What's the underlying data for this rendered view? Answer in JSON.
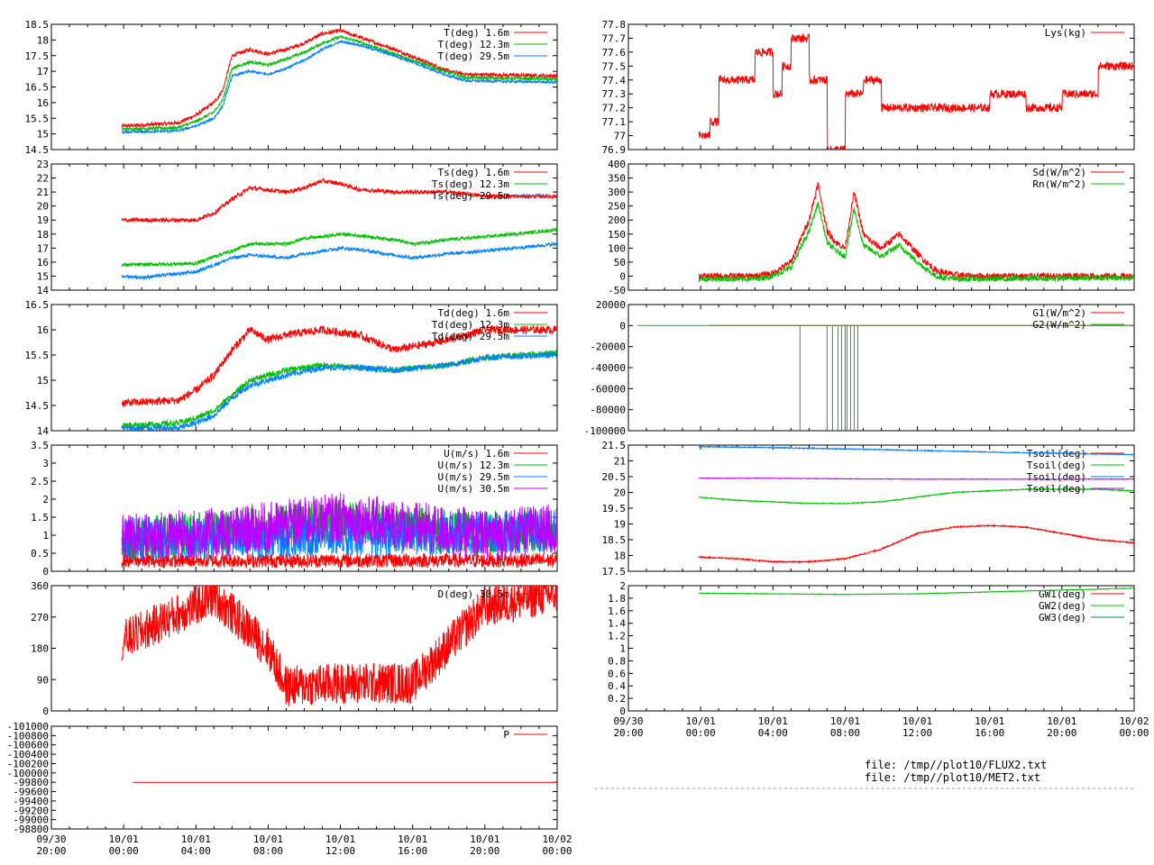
{
  "colors": {
    "red": "#ff0000",
    "green": "#00c000",
    "blue": "#0080ff",
    "magenta": "#c000ff",
    "brown": "#a05000",
    "teal": "#008080"
  },
  "time_axis": {
    "tick_labels": [
      [
        "09/30",
        "20:00"
      ],
      [
        "10/01",
        "00:00"
      ],
      [
        "10/01",
        "04:00"
      ],
      [
        "10/01",
        "08:00"
      ],
      [
        "10/01",
        "12:00"
      ],
      [
        "10/01",
        "16:00"
      ],
      [
        "10/01",
        "20:00"
      ],
      [
        "10/02",
        "00:00"
      ]
    ]
  },
  "files": {
    "line1": "file: /tmp//plot10/FLUX2.txt",
    "line2": "file: /tmp//plot10/MET2.txt"
  },
  "chart_data": [
    {
      "id": "temp",
      "type": "line",
      "x_range_hours": [
        0,
        28
      ],
      "ylim": [
        14.5,
        18.5
      ],
      "yticks": [
        "18.5",
        "18",
        "17.5",
        "17",
        "16.5",
        "16",
        "15.5",
        "15",
        "14.5"
      ],
      "series": [
        {
          "name": "T(deg)  1.6m",
          "color": "#ff0000",
          "noise": 0.06,
          "x": [
            3.9,
            7,
            8,
            9,
            9.5,
            10,
            11,
            12,
            13,
            14,
            15,
            16,
            17,
            19,
            22,
            23,
            28
          ],
          "y": [
            15.25,
            15.35,
            15.6,
            16,
            16.4,
            17.5,
            17.7,
            17.55,
            17.7,
            17.9,
            18.2,
            18.3,
            18.1,
            17.7,
            17.0,
            16.9,
            16.85
          ]
        },
        {
          "name": "T(deg) 12.3m",
          "color": "#00c000",
          "noise": 0.05,
          "x": [
            3.9,
            7,
            8,
            9,
            9.5,
            10,
            11,
            12,
            13,
            14,
            15,
            16,
            17,
            19,
            22,
            23,
            28
          ],
          "y": [
            15.15,
            15.2,
            15.4,
            15.7,
            16.1,
            17.1,
            17.3,
            17.2,
            17.4,
            17.6,
            17.9,
            18.1,
            17.95,
            17.55,
            16.95,
            16.8,
            16.75
          ]
        },
        {
          "name": "T(deg) 29.5m",
          "color": "#0080ff",
          "noise": 0.04,
          "x": [
            3.9,
            7,
            8,
            9,
            9.5,
            10,
            11,
            12,
            13,
            14,
            15,
            16,
            17,
            19,
            22,
            23,
            28
          ],
          "y": [
            15.05,
            15.1,
            15.25,
            15.5,
            15.9,
            16.85,
            17.0,
            16.9,
            17.1,
            17.35,
            17.7,
            17.95,
            17.85,
            17.5,
            16.85,
            16.7,
            16.65
          ]
        }
      ]
    },
    {
      "id": "sonic_temp",
      "type": "line",
      "x_range_hours": [
        0,
        28
      ],
      "ylim": [
        14,
        23
      ],
      "yticks": [
        "23",
        "22",
        "21",
        "20",
        "19",
        "18",
        "17",
        "16",
        "15",
        "14"
      ],
      "series": [
        {
          "name": "Ts(deg)  1.6m",
          "color": "#ff0000",
          "noise": 0.15,
          "x": [
            3.9,
            8,
            9,
            10,
            11,
            13,
            14,
            15,
            16,
            17,
            19,
            22,
            24,
            28
          ],
          "y": [
            19.0,
            19.0,
            19.5,
            20.5,
            21.3,
            21.0,
            21.3,
            21.8,
            21.6,
            21.2,
            21.0,
            21.0,
            20.7,
            20.7
          ]
        },
        {
          "name": "Ts(deg) 12.3m",
          "color": "#00c000",
          "noise": 0.12,
          "x": [
            3.9,
            8,
            9,
            10,
            11,
            13,
            14,
            15,
            16,
            17,
            19,
            20,
            22,
            24,
            28
          ],
          "y": [
            15.8,
            15.9,
            16.4,
            16.8,
            17.3,
            17.3,
            17.7,
            17.8,
            18.0,
            17.9,
            17.6,
            17.3,
            17.6,
            17.8,
            18.3
          ]
        },
        {
          "name": "Ts(deg) 29.5m",
          "color": "#0080ff",
          "noise": 0.12,
          "x": [
            3.9,
            5,
            8,
            9,
            10,
            11,
            13,
            14,
            15,
            16,
            17,
            19,
            20,
            22,
            24,
            28
          ],
          "y": [
            15.0,
            14.9,
            15.3,
            15.8,
            16.3,
            16.5,
            16.3,
            16.6,
            16.8,
            17.0,
            16.9,
            16.5,
            16.3,
            16.6,
            16.8,
            17.3
          ]
        }
      ]
    },
    {
      "id": "dewpoint",
      "type": "line",
      "x_range_hours": [
        0,
        28
      ],
      "ylim": [
        14,
        16.5
      ],
      "yticks": [
        "16.5",
        "16",
        "15.5",
        "15",
        "14.5",
        "14"
      ],
      "series": [
        {
          "name": "Td(deg)  1.6m",
          "color": "#ff0000",
          "noise": 0.08,
          "x": [
            3.9,
            7,
            8,
            9,
            10,
            11,
            12,
            13,
            15,
            17,
            19,
            22,
            24,
            28
          ],
          "y": [
            14.55,
            14.6,
            14.8,
            15.1,
            15.6,
            16.0,
            15.8,
            15.9,
            16.0,
            15.9,
            15.6,
            15.8,
            16.0,
            16.0
          ]
        },
        {
          "name": "Td(deg) 12.3m",
          "color": "#00c000",
          "noise": 0.06,
          "x": [
            3.9,
            7,
            8,
            9,
            10,
            11,
            12,
            13,
            15,
            17,
            19,
            22,
            24,
            28
          ],
          "y": [
            14.1,
            14.15,
            14.25,
            14.4,
            14.7,
            15.0,
            15.1,
            15.2,
            15.3,
            15.25,
            15.2,
            15.3,
            15.45,
            15.55
          ]
        },
        {
          "name": "Td(deg) 29.5m",
          "color": "#0080ff",
          "noise": 0.06,
          "x": [
            3.9,
            7,
            8,
            9,
            10,
            11,
            12,
            13,
            15,
            17,
            19,
            22,
            24,
            28
          ],
          "y": [
            14.05,
            14.05,
            14.15,
            14.3,
            14.65,
            14.9,
            15.0,
            15.1,
            15.25,
            15.25,
            15.2,
            15.3,
            15.45,
            15.5
          ]
        }
      ]
    },
    {
      "id": "wind_speed",
      "type": "line",
      "x_range_hours": [
        0,
        28
      ],
      "ylim": [
        0,
        3.5
      ],
      "yticks": [
        "3.5",
        "3",
        "2.5",
        "2",
        "1.5",
        "1",
        "0.5",
        "0"
      ],
      "series": [
        {
          "name": "U(m/s)  1.6m",
          "color": "#ff0000",
          "noise": 0.2,
          "x": [
            3.9,
            28
          ],
          "y": [
            0.3,
            0.3
          ]
        },
        {
          "name": "U(m/s) 12.3m",
          "color": "#00c000",
          "noise": 0.6,
          "x": [
            3.9,
            10,
            16,
            24,
            28
          ],
          "y": [
            0.9,
            1.1,
            1.4,
            1.0,
            1.2
          ]
        },
        {
          "name": "U(m/s) 29.5m",
          "color": "#0080ff",
          "noise": 0.6,
          "x": [
            3.9,
            28
          ],
          "y": [
            0.9,
            1.1
          ]
        },
        {
          "name": "U(m/s) 30.5m",
          "color": "#c000ff",
          "noise": 0.7,
          "x": [
            3.9,
            10,
            16,
            24,
            28
          ],
          "y": [
            0.9,
            1.1,
            1.5,
            1.0,
            1.2
          ]
        }
      ]
    },
    {
      "id": "wind_dir",
      "type": "line",
      "x_range_hours": [
        0,
        28
      ],
      "ylim": [
        0,
        360
      ],
      "yticks": [
        "360",
        "270",
        "180",
        "90",
        "0"
      ],
      "series": [
        {
          "name": "D(deg)  30.5m",
          "color": "#ff0000",
          "noise": 60,
          "x": [
            3.9,
            9,
            12,
            13,
            16,
            20,
            24,
            28
          ],
          "y": [
            200,
            330,
            180,
            70,
            80,
            80,
            300,
            340
          ]
        }
      ]
    },
    {
      "id": "pressure",
      "type": "line",
      "x_range_hours": [
        0,
        28
      ],
      "ylim": [
        -101000,
        -98800
      ],
      "yticks": [
        "-101000",
        "-100800",
        "-100600",
        "-100400",
        "-100200",
        "-100000",
        "-99800",
        "-99600",
        "-99400",
        "-99200",
        "-99000",
        "-98800"
      ],
      "series": [
        {
          "name": "P",
          "color": "#ff0000",
          "noise": 0,
          "x": [
            4.5,
            28
          ],
          "y": [
            -100000,
            -100000
          ]
        }
      ]
    },
    {
      "id": "lysimeter",
      "type": "line",
      "x_range_hours": [
        0,
        28
      ],
      "ylim": [
        76.9,
        77.8
      ],
      "yticks": [
        "77.8",
        "77.7",
        "77.6",
        "77.5",
        "77.4",
        "77.3",
        "77.2",
        "77.1",
        "77",
        "76.9"
      ],
      "series": [
        {
          "name": "Lys(kg)",
          "color": "#ff0000",
          "noise": 0.03,
          "step": true,
          "x": [
            3.9,
            4.5,
            5,
            6,
            7,
            8,
            8.5,
            9,
            10,
            11,
            12,
            13,
            14,
            16,
            18,
            20,
            22,
            24,
            26,
            27,
            28
          ],
          "y": [
            77.0,
            77.1,
            77.4,
            77.4,
            77.6,
            77.3,
            77.5,
            77.7,
            77.4,
            76.9,
            77.3,
            77.4,
            77.2,
            77.2,
            77.2,
            77.3,
            77.2,
            77.3,
            77.5,
            77.5,
            77.3
          ]
        }
      ]
    },
    {
      "id": "radiation",
      "type": "line",
      "x_range_hours": [
        0,
        28
      ],
      "ylim": [
        -50,
        400
      ],
      "yticks": [
        "400",
        "350",
        "300",
        "250",
        "200",
        "150",
        "100",
        "50",
        "0",
        "-50"
      ],
      "series": [
        {
          "name": "Sd(W/m^2)",
          "color": "#ff0000",
          "noise": 12,
          "x": [
            3.9,
            7,
            8,
            9,
            10,
            10.5,
            11,
            11.5,
            12,
            12.5,
            13,
            13.5,
            14,
            15,
            16,
            17,
            18,
            19,
            20,
            28
          ],
          "y": [
            0,
            0,
            10,
            50,
            200,
            330,
            160,
            120,
            100,
            300,
            150,
            120,
            100,
            150,
            80,
            20,
            5,
            0,
            0,
            0
          ]
        },
        {
          "name": "Rn(W/m^2)",
          "color": "#00c000",
          "noise": 10,
          "x": [
            3.9,
            7,
            8,
            9,
            10,
            10.5,
            11,
            11.5,
            12,
            12.5,
            13,
            13.5,
            14,
            15,
            16,
            17,
            18,
            19,
            20,
            28
          ],
          "y": [
            -10,
            -10,
            0,
            30,
            160,
            260,
            120,
            90,
            70,
            240,
            110,
            90,
            70,
            110,
            50,
            0,
            -10,
            -10,
            -10,
            -5
          ]
        }
      ]
    },
    {
      "id": "ground_flux",
      "type": "line",
      "x_range_hours": [
        0,
        28
      ],
      "ylim": [
        -100000,
        20000
      ],
      "yticks": [
        "20000",
        "0",
        "-20000",
        "-40000",
        "-60000",
        "-80000",
        "-100000"
      ],
      "series": [
        {
          "name": "G1(W/m^2)",
          "color": "#ff0000",
          "noise": 0,
          "x": [
            4.5,
            28
          ],
          "y": [
            0,
            0
          ]
        },
        {
          "name": "G2(W/m^2)",
          "color": "#00c000",
          "noise": 0,
          "x": [
            0.5,
            28
          ],
          "y": [
            0,
            0
          ],
          "spikes": [
            9.5,
            11.0,
            11.3,
            11.6,
            11.8,
            12.0,
            12.1,
            12.3,
            12.5,
            12.7
          ]
        }
      ]
    },
    {
      "id": "soil_temp",
      "type": "line",
      "x_range_hours": [
        0,
        28
      ],
      "ylim": [
        17.5,
        21.5
      ],
      "yticks": [
        "21.5",
        "21",
        "20.5",
        "20",
        "19.5",
        "19",
        "18.5",
        "18",
        "17.5"
      ],
      "series": [
        {
          "name": "Tsoil(deg)",
          "color": "#ff0000",
          "noise": 0.02,
          "x": [
            3.9,
            6,
            8,
            10,
            12,
            14,
            16,
            18,
            20,
            22,
            24,
            26,
            28
          ],
          "y": [
            17.95,
            17.9,
            17.8,
            17.8,
            17.9,
            18.2,
            18.7,
            18.9,
            18.95,
            18.9,
            18.7,
            18.5,
            18.4
          ]
        },
        {
          "name": "Tsoil(deg)",
          "color": "#00c000",
          "noise": 0.015,
          "x": [
            3.9,
            6,
            8,
            10,
            12,
            14,
            16,
            18,
            20,
            22,
            24,
            26,
            28
          ],
          "y": [
            19.85,
            19.75,
            19.7,
            19.65,
            19.65,
            19.7,
            19.85,
            20.0,
            20.05,
            20.1,
            20.1,
            20.1,
            20.05
          ]
        },
        {
          "name": "Tsoil(deg)",
          "color": "#0080ff",
          "noise": 0.015,
          "x": [
            3.9,
            8,
            12,
            16,
            20,
            24,
            28
          ],
          "y": [
            21.45,
            21.42,
            21.38,
            21.33,
            21.28,
            21.24,
            21.2
          ]
        },
        {
          "name": "Tsoil(deg)",
          "color": "#c000ff",
          "noise": 0.01,
          "x": [
            3.9,
            8,
            12,
            16,
            20,
            24,
            28
          ],
          "y": [
            20.45,
            20.45,
            20.43,
            20.42,
            20.42,
            20.42,
            20.42
          ]
        }
      ]
    },
    {
      "id": "ground_water",
      "type": "line",
      "x_range_hours": [
        0,
        28
      ],
      "ylim": [
        0,
        2
      ],
      "yticks": [
        "2",
        "1.8",
        "1.6",
        "1.4",
        "1.2",
        "1",
        "0.8",
        "0.6",
        "0.4",
        "0.2",
        "0"
      ],
      "series": [
        {
          "name": "GW1(deg)",
          "color": "#ff0000",
          "noise": 0,
          "x": [],
          "y": []
        },
        {
          "name": "GW2(deg)",
          "color": "#00c000",
          "noise": 0.005,
          "x": [
            3.9,
            8,
            12,
            16,
            20,
            24,
            28
          ],
          "y": [
            1.88,
            1.87,
            1.86,
            1.87,
            1.9,
            1.93,
            1.96
          ]
        },
        {
          "name": "GW3(deg)",
          "color": "#008080",
          "noise": 0,
          "x": [],
          "y": []
        }
      ]
    }
  ]
}
